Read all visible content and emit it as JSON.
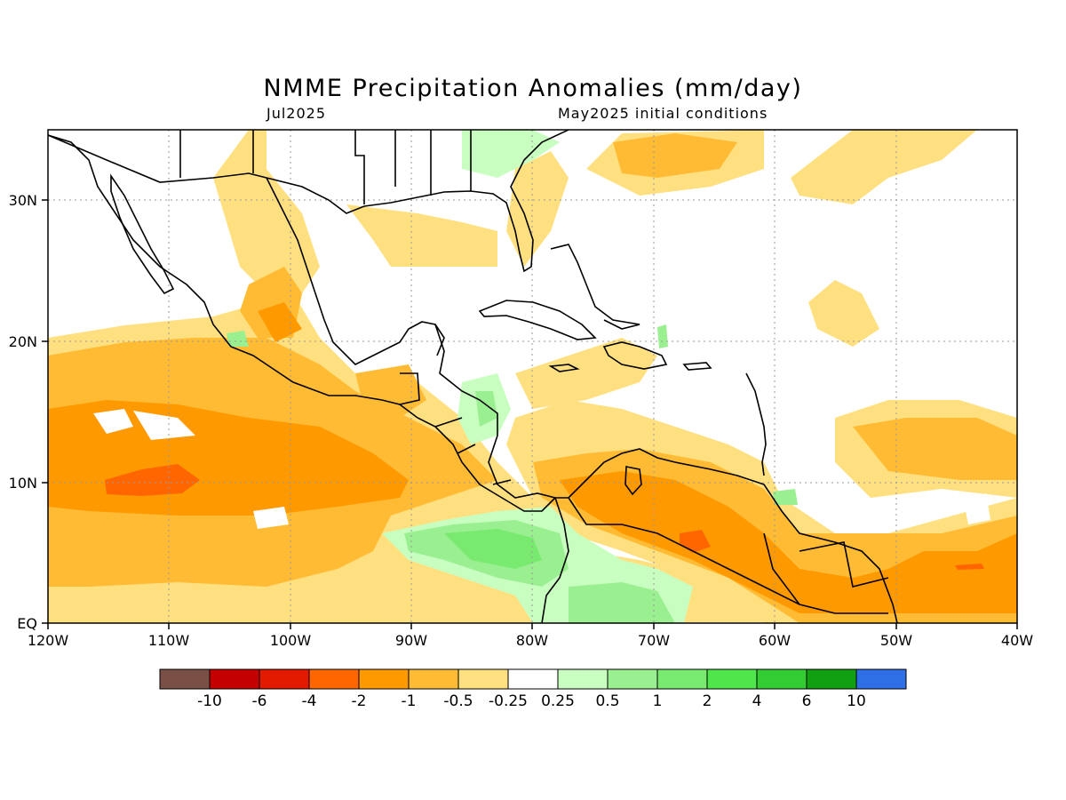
{
  "title": "NMME Precipitation Anomalies (mm/day)",
  "subtitle_left": "Jul2025",
  "subtitle_right": "May2025 initial conditions",
  "lon_labels": [
    "120W",
    "110W",
    "100W",
    "90W",
    "80W",
    "70W",
    "60W",
    "50W",
    "40W"
  ],
  "lat_labels": [
    "30N",
    "20N",
    "10N",
    "EQ"
  ],
  "colorbar": {
    "colors": [
      "#7a4f46",
      "#c40000",
      "#e41a00",
      "#ff6600",
      "#ff9900",
      "#ffbb33",
      "#ffe080",
      "#ffffff",
      "#c8ffc0",
      "#9af090",
      "#78ea70",
      "#4ee64a",
      "#33cc33",
      "#10a010",
      "#2f6fe6"
    ],
    "labels": [
      "-10",
      "-6",
      "-4",
      "-2",
      "-1",
      "-0.5",
      "-0.25",
      "0.25",
      "0.5",
      "1",
      "2",
      "4",
      "6",
      "10"
    ]
  },
  "colors": {
    "land_outline": "#000000",
    "grid": "#999999"
  }
}
